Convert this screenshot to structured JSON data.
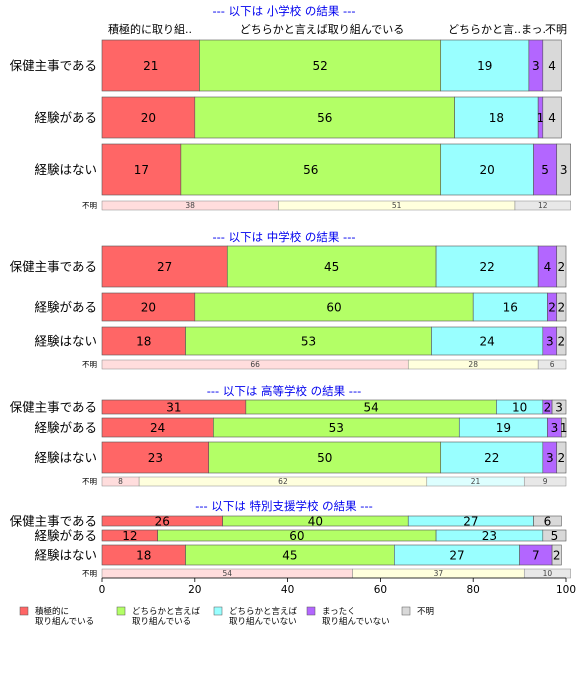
{
  "colors": {
    "red": "#ff6666",
    "green": "#b3ff66",
    "cyan": "#99ffff",
    "purple": "#b366ff",
    "gray": "#d9d9d9",
    "unknown_red": "#ffdddd",
    "unknown_yellow": "#ffffdd",
    "unknown_cyan": "#ddffff",
    "unknown_gray": "#e8e8e8",
    "title": "#0000ee"
  },
  "header_labels": {
    "col1": "積極的に取り組..",
    "col2": "どちらかと言えば取り組んでいる",
    "col3": "どちらかと言..",
    "col4": "まっ.",
    "col5": "不明"
  },
  "chart_data": {
    "type": "bar",
    "orientation": "horizontal-stacked-100",
    "xlim": [
      0,
      100
    ],
    "xticks": [
      "0",
      "20",
      "40",
      "60",
      "80",
      "100"
    ],
    "categories_legend": [
      {
        "name": "積極的に\n取り組んでいる",
        "color": "#ff6666"
      },
      {
        "name": "どちらかと言えば\n取り組んでいる",
        "color": "#b3ff66"
      },
      {
        "name": "どちらかと言えば\n取り組んでいない",
        "color": "#99ffff"
      },
      {
        "name": "まったく\n取り組んでいない",
        "color": "#b366ff"
      },
      {
        "name": "不明",
        "color": "#d9d9d9"
      }
    ],
    "panels": [
      {
        "title": "--- 以下は 小学校 の結果 ---",
        "rows": [
          {
            "label": "保健主事である",
            "values": [
              21,
              52,
              19,
              3,
              4
            ]
          },
          {
            "label": "経験がある",
            "values": [
              20,
              56,
              18,
              1,
              4
            ]
          },
          {
            "label": "経験はない",
            "values": [
              17,
              56,
              20,
              5,
              3
            ]
          }
        ],
        "unknown": {
          "label": "不明",
          "values": [
            38,
            51,
            12
          ]
        }
      },
      {
        "title": "--- 以下は 中学校 の結果 ---",
        "rows": [
          {
            "label": "保健主事である",
            "values": [
              27,
              45,
              22,
              4,
              2
            ]
          },
          {
            "label": "経験がある",
            "values": [
              20,
              60,
              16,
              2,
              2
            ]
          },
          {
            "label": "経験はない",
            "values": [
              18,
              53,
              24,
              3,
              2
            ]
          }
        ],
        "unknown": {
          "label": "不明",
          "values": [
            66,
            28,
            6
          ]
        }
      },
      {
        "title": "--- 以下は 高等学校 の結果 ---",
        "rows": [
          {
            "label": "保健主事である",
            "values": [
              31,
              54,
              10,
              2,
              3
            ]
          },
          {
            "label": "経験がある",
            "values": [
              24,
              53,
              19,
              3,
              1
            ]
          },
          {
            "label": "経験はない",
            "values": [
              23,
              50,
              22,
              3,
              2
            ]
          }
        ],
        "unknown": {
          "label": "不明",
          "values": [
            8,
            62,
            21,
            9
          ]
        }
      },
      {
        "title": "--- 以下は 特別支援学校 の結果 ---",
        "rows": [
          {
            "label": "保健主事である",
            "values": [
              26,
              40,
              27,
              0,
              6
            ]
          },
          {
            "label": "経験がある",
            "values": [
              12,
              60,
              23,
              0,
              5
            ]
          },
          {
            "label": "経験はない",
            "values": [
              18,
              45,
              27,
              7,
              2
            ]
          }
        ],
        "unknown": {
          "label": "不明",
          "values": [
            54,
            37,
            10
          ]
        }
      }
    ]
  }
}
